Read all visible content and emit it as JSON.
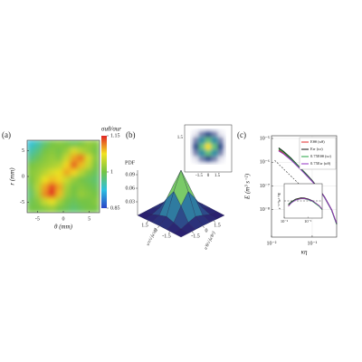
{
  "chart_data": [
    {
      "type": "heatmap",
      "panel_label": "(a)",
      "xlabel": "θ (mm)",
      "ylabel": "r (mm)",
      "xlim": [
        -7,
        7
      ],
      "ylim": [
        -7,
        7
      ],
      "xticks": [
        -5,
        0,
        5
      ],
      "yticks": [
        -5,
        0,
        5
      ],
      "colorbar_label": "σuθ/σur",
      "clim": [
        0.85,
        1.15
      ],
      "cticks": [
        0.85,
        1,
        1.15
      ],
      "colormap": [
        "#2a44c8",
        "#2cc0e0",
        "#74c444",
        "#f2e222",
        "#e02424"
      ],
      "z": [
        [
          0.93,
          0.95,
          0.98,
          1.0,
          1.01,
          1.0,
          0.99,
          1.0,
          1.02,
          1.01
        ],
        [
          0.95,
          0.97,
          1.0,
          1.01,
          1.0,
          1.02,
          1.06,
          1.04,
          1.02,
          1.0
        ],
        [
          0.97,
          0.99,
          1.01,
          1.02,
          1.01,
          1.05,
          1.1,
          1.12,
          1.06,
          1.01
        ],
        [
          1.0,
          1.01,
          1.02,
          1.03,
          1.04,
          1.08,
          1.13,
          1.09,
          1.05,
          1.0
        ],
        [
          1.01,
          1.02,
          1.04,
          1.06,
          1.07,
          1.1,
          1.08,
          1.04,
          1.01,
          0.99
        ],
        [
          1.0,
          1.03,
          1.07,
          1.09,
          1.08,
          1.05,
          1.02,
          1.0,
          0.99,
          0.98
        ],
        [
          0.99,
          1.04,
          1.1,
          1.14,
          1.1,
          1.03,
          1.0,
          1.01,
          1.0,
          0.99
        ],
        [
          0.98,
          1.03,
          1.11,
          1.15,
          1.09,
          1.02,
          1.0,
          1.02,
          1.01,
          1.0
        ],
        [
          0.99,
          1.01,
          1.05,
          1.07,
          1.03,
          1.0,
          0.99,
          1.0,
          1.0,
          1.01
        ],
        [
          1.0,
          1.0,
          1.01,
          1.02,
          1.0,
          0.99,
          0.98,
          0.99,
          1.0,
          1.0
        ]
      ]
    },
    {
      "type": "surface",
      "panel_label": "(b)",
      "zlabel": "PDF",
      "xlabel": "u′r/√⟨u′r²⟩",
      "ylabel": "u′θ/√⟨u′θ²⟩",
      "x": [
        -3,
        -2,
        -1,
        0,
        1,
        2,
        3
      ],
      "y": [
        -3,
        -2,
        -1,
        0,
        1,
        2,
        3
      ],
      "xticks": [
        1.5,
        0,
        -1.5
      ],
      "yticks": [
        -1.5,
        0,
        1.5
      ],
      "zlim": [
        0,
        0.1
      ],
      "zticks": [
        0.03,
        0.06,
        0.09
      ],
      "inset_xticks": [
        -1.5,
        0,
        1.5
      ],
      "inset_yticks": [
        1.5
      ],
      "colormap": [
        "#2a1e6e",
        "#2f6fa0",
        "#30b0a0",
        "#b0dc40",
        "#f8e020"
      ],
      "z": [
        [
          0.0,
          0.0002,
          0.0007,
          0.0011,
          0.0007,
          0.0002,
          0.0
        ],
        [
          0.0002,
          0.0018,
          0.0082,
          0.0135,
          0.0082,
          0.0018,
          0.0002
        ],
        [
          0.0007,
          0.0082,
          0.0368,
          0.0607,
          0.0368,
          0.0082,
          0.0007
        ],
        [
          0.0011,
          0.0135,
          0.0607,
          0.1,
          0.0607,
          0.0135,
          0.0011
        ],
        [
          0.0007,
          0.0082,
          0.0368,
          0.0607,
          0.0368,
          0.0082,
          0.0007
        ],
        [
          0.0002,
          0.0018,
          0.0082,
          0.0135,
          0.0082,
          0.0018,
          0.0002
        ],
        [
          0.0,
          0.0002,
          0.0007,
          0.0011,
          0.0007,
          0.0002,
          0.0
        ]
      ]
    },
    {
      "type": "line",
      "panel_label": "(c)",
      "xlabel": "κη",
      "ylabel": "E (m³ s⁻²)",
      "log_x": true,
      "log_y": true,
      "grid": true,
      "xlim": [
        0.01,
        0.4
      ],
      "ylim": [
        7e-10,
        1.3e-05
      ],
      "xticks": [
        {
          "value": 0.01,
          "label": "10⁻²"
        },
        {
          "value": 0.1,
          "label": "10⁻¹"
        }
      ],
      "yticks": [
        {
          "value": 1e-05,
          "label": "10⁻⁵"
        },
        {
          "value": 1e-06,
          "label": "10⁻⁶"
        },
        {
          "value": 1e-07,
          "label": "10⁻⁷"
        },
        {
          "value": 1e-08,
          "label": "10⁻⁸"
        }
      ],
      "x": [
        0.015,
        0.02,
        0.03,
        0.05,
        0.07,
        0.1,
        0.15,
        0.2,
        0.3,
        0.4
      ],
      "legend": "upper right",
      "series": [
        {
          "name": "Eθθ (κθ)",
          "color": "#e02828",
          "values": [
            3.2e-06,
            2.4e-06,
            1.3e-06,
            5.5e-07,
            3e-07,
            1.6e-07,
            6.8e-08,
            3.4e-08,
            1e-08,
            2.6e-09
          ]
        },
        {
          "name": "Err (κr)",
          "color": "#111111",
          "values": [
            4e-06,
            2.8e-06,
            1.5e-06,
            6e-07,
            3.3e-07,
            1.7e-07,
            7e-08,
            3.5e-08,
            1e-08,
            2.5e-09
          ]
        },
        {
          "name": "0.75Eθθ (κr)",
          "color": "#20a040",
          "values": [
            3.6e-06,
            2.6e-06,
            1.4e-06,
            5.8e-07,
            3.1e-07,
            1.6e-07,
            6.6e-08,
            3.3e-08,
            9.5e-09,
            2.4e-09
          ]
        },
        {
          "name": "0.75Err (κθ)",
          "color": "#9030c0",
          "values": [
            3e-06,
            2.2e-06,
            1.25e-06,
            5.3e-07,
            2.9e-07,
            1.55e-07,
            6.7e-08,
            3.4e-08,
            1e-08,
            2.6e-09
          ]
        }
      ],
      "reference": {
        "x": [
          0.012,
          0.08
        ],
        "values": [
          1.2e-06,
          5.1e-08
        ]
      },
      "inset": {
        "ylabel": "ε⁻²ᐟ³κ⁵ᐟ³E",
        "xlim": [
          0.01,
          0.4
        ],
        "ylim": [
          0,
          2
        ],
        "level": 1,
        "xticks": [
          {
            "value": 0.01,
            "label": "10⁻²"
          },
          {
            "value": 0.1,
            "label": "10⁻¹"
          }
        ],
        "series": [
          {
            "values": [
              0.7,
              0.9,
              1.08,
              1.15,
              1.15,
              1.1,
              1.0,
              0.9,
              0.72,
              0.52
            ]
          },
          {
            "values": [
              0.8,
              0.95,
              1.1,
              1.18,
              1.17,
              1.12,
              1.02,
              0.9,
              0.7,
              0.5
            ]
          },
          {
            "values": [
              0.75,
              0.92,
              1.06,
              1.13,
              1.12,
              1.07,
              0.98,
              0.86,
              0.68,
              0.48
            ]
          },
          {
            "values": [
              0.68,
              0.88,
              1.04,
              1.12,
              1.13,
              1.09,
              1.0,
              0.9,
              0.72,
              0.52
            ]
          }
        ]
      }
    }
  ]
}
